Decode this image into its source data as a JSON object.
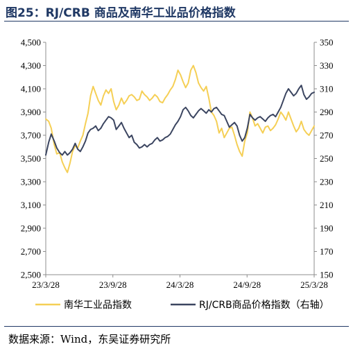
{
  "header": {
    "title": "图25：RJ/CRB 商品及南华工业品价格指数"
  },
  "footer": {
    "source": "数据来源：Wind，东吴证券研究所"
  },
  "chart_data": {
    "type": "line",
    "x_axis": {
      "type": "date",
      "ticks": [
        "23/3/28",
        "23/9/28",
        "24/3/28",
        "24/9/28",
        "25/3/28"
      ],
      "range": [
        "2023-03-28",
        "2025-03-28"
      ]
    },
    "y_left": {
      "ylim": [
        2500,
        4500
      ],
      "ticks": [
        "2,500",
        "2,700",
        "2,900",
        "3,100",
        "3,300",
        "3,500",
        "3,700",
        "3,900",
        "4,100",
        "4,300",
        "4,500"
      ]
    },
    "y_right": {
      "ylim": [
        150,
        350
      ],
      "ticks": [
        "150",
        "170",
        "190",
        "210",
        "230",
        "250",
        "270",
        "290",
        "310",
        "330",
        "350"
      ]
    },
    "grid": false,
    "legend_position": "bottom",
    "series": [
      {
        "name": "南华工业品指数",
        "axis": "left",
        "color": "#f5cf55",
        "points": [
          [
            "2023-03-28",
            3840
          ],
          [
            "2023-04-05",
            3820
          ],
          [
            "2023-04-12",
            3760
          ],
          [
            "2023-04-20",
            3620
          ],
          [
            "2023-04-27",
            3540
          ],
          [
            "2023-05-05",
            3550
          ],
          [
            "2023-05-12",
            3470
          ],
          [
            "2023-05-19",
            3420
          ],
          [
            "2023-05-26",
            3380
          ],
          [
            "2023-06-02",
            3460
          ],
          [
            "2023-06-09",
            3560
          ],
          [
            "2023-06-16",
            3610
          ],
          [
            "2023-06-23",
            3590
          ],
          [
            "2023-06-30",
            3650
          ],
          [
            "2023-07-07",
            3700
          ],
          [
            "2023-07-14",
            3800
          ],
          [
            "2023-07-21",
            3890
          ],
          [
            "2023-07-28",
            4040
          ],
          [
            "2023-08-04",
            4120
          ],
          [
            "2023-08-11",
            4060
          ],
          [
            "2023-08-18",
            4000
          ],
          [
            "2023-08-25",
            3960
          ],
          [
            "2023-09-01",
            4040
          ],
          [
            "2023-09-08",
            4090
          ],
          [
            "2023-09-15",
            4060
          ],
          [
            "2023-09-22",
            4100
          ],
          [
            "2023-09-29",
            3990
          ],
          [
            "2023-10-06",
            3920
          ],
          [
            "2023-10-13",
            3960
          ],
          [
            "2023-10-20",
            4020
          ],
          [
            "2023-10-27",
            3970
          ],
          [
            "2023-11-03",
            4000
          ],
          [
            "2023-11-10",
            4040
          ],
          [
            "2023-11-17",
            4050
          ],
          [
            "2023-11-24",
            4030
          ],
          [
            "2023-12-01",
            4000
          ],
          [
            "2023-12-08",
            4010
          ],
          [
            "2023-12-15",
            4080
          ],
          [
            "2023-12-22",
            4050
          ],
          [
            "2023-12-29",
            4030
          ],
          [
            "2024-01-05",
            4000
          ],
          [
            "2024-01-12",
            4020
          ],
          [
            "2024-01-19",
            4050
          ],
          [
            "2024-01-26",
            4030
          ],
          [
            "2024-02-02",
            3990
          ],
          [
            "2024-02-09",
            3980
          ],
          [
            "2024-02-16",
            4020
          ],
          [
            "2024-02-23",
            4050
          ],
          [
            "2024-03-01",
            4090
          ],
          [
            "2024-03-08",
            4120
          ],
          [
            "2024-03-15",
            4180
          ],
          [
            "2024-03-22",
            4260
          ],
          [
            "2024-03-29",
            4220
          ],
          [
            "2024-04-05",
            4160
          ],
          [
            "2024-04-12",
            4110
          ],
          [
            "2024-04-19",
            4150
          ],
          [
            "2024-04-26",
            4260
          ],
          [
            "2024-05-03",
            4300
          ],
          [
            "2024-05-10",
            4240
          ],
          [
            "2024-05-17",
            4150
          ],
          [
            "2024-05-24",
            4110
          ],
          [
            "2024-05-31",
            4080
          ],
          [
            "2024-06-07",
            4120
          ],
          [
            "2024-06-14",
            4020
          ],
          [
            "2024-06-21",
            3900
          ],
          [
            "2024-06-28",
            3870
          ],
          [
            "2024-07-05",
            3820
          ],
          [
            "2024-07-12",
            3720
          ],
          [
            "2024-07-19",
            3760
          ],
          [
            "2024-07-26",
            3680
          ],
          [
            "2024-08-02",
            3720
          ],
          [
            "2024-08-09",
            3760
          ],
          [
            "2024-08-16",
            3770
          ],
          [
            "2024-08-23",
            3700
          ],
          [
            "2024-08-30",
            3620
          ],
          [
            "2024-09-06",
            3560
          ],
          [
            "2024-09-13",
            3520
          ],
          [
            "2024-09-20",
            3650
          ],
          [
            "2024-09-27",
            3720
          ],
          [
            "2024-10-04",
            3900
          ],
          [
            "2024-10-11",
            3850
          ],
          [
            "2024-10-18",
            3780
          ],
          [
            "2024-10-25",
            3800
          ],
          [
            "2024-11-01",
            3760
          ],
          [
            "2024-11-08",
            3720
          ],
          [
            "2024-11-15",
            3770
          ],
          [
            "2024-11-22",
            3780
          ],
          [
            "2024-11-29",
            3740
          ],
          [
            "2024-12-06",
            3760
          ],
          [
            "2024-12-13",
            3790
          ],
          [
            "2024-12-20",
            3840
          ],
          [
            "2024-12-27",
            3900
          ],
          [
            "2025-01-03",
            3870
          ],
          [
            "2025-01-10",
            3830
          ],
          [
            "2025-01-17",
            3900
          ],
          [
            "2025-01-24",
            3840
          ],
          [
            "2025-01-31",
            3780
          ],
          [
            "2025-02-07",
            3730
          ],
          [
            "2025-02-14",
            3760
          ],
          [
            "2025-02-21",
            3820
          ],
          [
            "2025-02-28",
            3750
          ],
          [
            "2025-03-07",
            3720
          ],
          [
            "2025-03-14",
            3700
          ],
          [
            "2025-03-21",
            3740
          ],
          [
            "2025-03-28",
            3780
          ]
        ]
      },
      {
        "name": "RJ/CRB商品价格指数（右轴）",
        "axis": "right",
        "color": "#3b4560",
        "points": [
          [
            "2023-03-28",
            253
          ],
          [
            "2023-04-05",
            264
          ],
          [
            "2023-04-12",
            271
          ],
          [
            "2023-04-20",
            265
          ],
          [
            "2023-04-27",
            259
          ],
          [
            "2023-05-05",
            255
          ],
          [
            "2023-05-12",
            253
          ],
          [
            "2023-05-19",
            256
          ],
          [
            "2023-05-26",
            253
          ],
          [
            "2023-06-02",
            255
          ],
          [
            "2023-06-09",
            258
          ],
          [
            "2023-06-16",
            263
          ],
          [
            "2023-06-23",
            258
          ],
          [
            "2023-06-30",
            256
          ],
          [
            "2023-07-07",
            260
          ],
          [
            "2023-07-14",
            265
          ],
          [
            "2023-07-21",
            272
          ],
          [
            "2023-07-28",
            275
          ],
          [
            "2023-08-04",
            276
          ],
          [
            "2023-08-11",
            278
          ],
          [
            "2023-08-18",
            274
          ],
          [
            "2023-08-25",
            276
          ],
          [
            "2023-09-01",
            280
          ],
          [
            "2023-09-08",
            283
          ],
          [
            "2023-09-15",
            286
          ],
          [
            "2023-09-22",
            285
          ],
          [
            "2023-09-29",
            283
          ],
          [
            "2023-10-06",
            275
          ],
          [
            "2023-10-13",
            278
          ],
          [
            "2023-10-20",
            281
          ],
          [
            "2023-10-27",
            276
          ],
          [
            "2023-11-03",
            272
          ],
          [
            "2023-11-10",
            268
          ],
          [
            "2023-11-17",
            270
          ],
          [
            "2023-11-24",
            264
          ],
          [
            "2023-12-01",
            262
          ],
          [
            "2023-12-08",
            259
          ],
          [
            "2023-12-15",
            260
          ],
          [
            "2023-12-22",
            262
          ],
          [
            "2023-12-29",
            260
          ],
          [
            "2024-01-05",
            262
          ],
          [
            "2024-01-12",
            263
          ],
          [
            "2024-01-19",
            266
          ],
          [
            "2024-01-26",
            268
          ],
          [
            "2024-02-02",
            265
          ],
          [
            "2024-02-09",
            266
          ],
          [
            "2024-02-16",
            268
          ],
          [
            "2024-02-23",
            269
          ],
          [
            "2024-03-01",
            271
          ],
          [
            "2024-03-08",
            275
          ],
          [
            "2024-03-15",
            279
          ],
          [
            "2024-03-22",
            282
          ],
          [
            "2024-03-29",
            286
          ],
          [
            "2024-04-05",
            292
          ],
          [
            "2024-04-12",
            294
          ],
          [
            "2024-04-19",
            291
          ],
          [
            "2024-04-26",
            287
          ],
          [
            "2024-05-03",
            285
          ],
          [
            "2024-05-10",
            288
          ],
          [
            "2024-05-17",
            291
          ],
          [
            "2024-05-24",
            293
          ],
          [
            "2024-05-31",
            291
          ],
          [
            "2024-06-07",
            289
          ],
          [
            "2024-06-14",
            292
          ],
          [
            "2024-06-21",
            290
          ],
          [
            "2024-06-28",
            293
          ],
          [
            "2024-07-05",
            294
          ],
          [
            "2024-07-12",
            291
          ],
          [
            "2024-07-19",
            288
          ],
          [
            "2024-07-26",
            287
          ],
          [
            "2024-08-02",
            282
          ],
          [
            "2024-08-09",
            277
          ],
          [
            "2024-08-16",
            279
          ],
          [
            "2024-08-23",
            281
          ],
          [
            "2024-08-30",
            278
          ],
          [
            "2024-09-06",
            270
          ],
          [
            "2024-09-13",
            265
          ],
          [
            "2024-09-20",
            268
          ],
          [
            "2024-09-27",
            276
          ],
          [
            "2024-10-04",
            288
          ],
          [
            "2024-10-11",
            285
          ],
          [
            "2024-10-18",
            283
          ],
          [
            "2024-10-25",
            285
          ],
          [
            "2024-11-01",
            286
          ],
          [
            "2024-11-08",
            284
          ],
          [
            "2024-11-15",
            282
          ],
          [
            "2024-11-22",
            285
          ],
          [
            "2024-11-29",
            287
          ],
          [
            "2024-12-06",
            288
          ],
          [
            "2024-12-13",
            286
          ],
          [
            "2024-12-20",
            290
          ],
          [
            "2024-12-27",
            294
          ],
          [
            "2025-01-03",
            300
          ],
          [
            "2025-01-10",
            306
          ],
          [
            "2025-01-17",
            310
          ],
          [
            "2025-01-24",
            307
          ],
          [
            "2025-01-31",
            304
          ],
          [
            "2025-02-07",
            306
          ],
          [
            "2025-02-14",
            310
          ],
          [
            "2025-02-21",
            313
          ],
          [
            "2025-02-28",
            305
          ],
          [
            "2025-03-07",
            301
          ],
          [
            "2025-03-14",
            303
          ],
          [
            "2025-03-21",
            306
          ],
          [
            "2025-03-28",
            307
          ]
        ]
      }
    ]
  }
}
